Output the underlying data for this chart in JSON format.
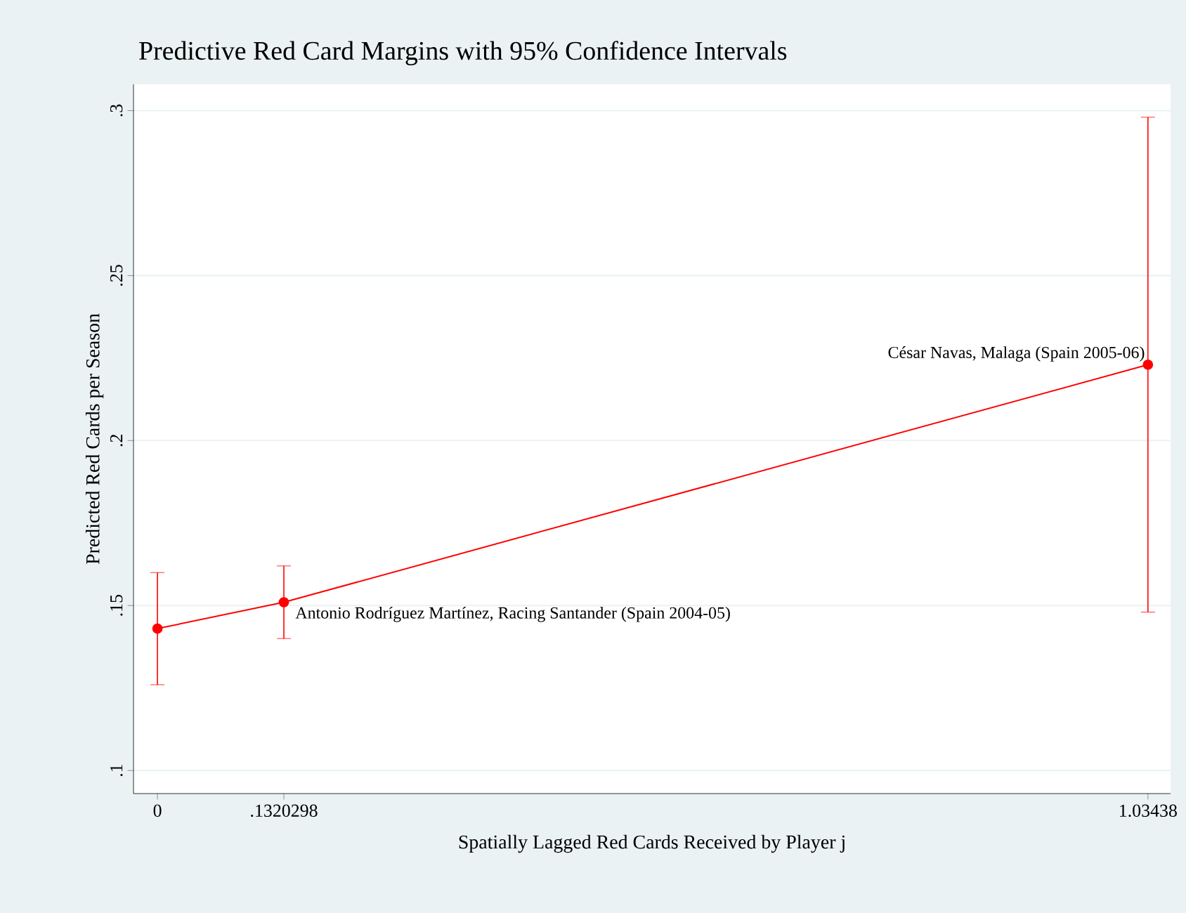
{
  "chart_data": {
    "type": "line",
    "title": "Predictive Red Card Margins with 95% Confidence Intervals",
    "xlabel": "Spatially Lagged Red Cards Received by Player j",
    "ylabel": "Predicted Red Cards per Season",
    "x": [
      0,
      0.1320298,
      1.03438
    ],
    "values": [
      0.143,
      0.151,
      0.223
    ],
    "errors": [
      [
        0.126,
        0.16
      ],
      [
        0.14,
        0.162
      ],
      [
        0.148,
        0.298
      ]
    ],
    "color": "#ff0000",
    "marker": "circle",
    "line_style": "solid",
    "grid": "y",
    "xlim": [
      -0.025,
      1.058
    ],
    "ylim": [
      0.093,
      0.308
    ],
    "xticks": [
      0,
      {
        "value": 0.1320298,
        "label": ".1320298"
      },
      1.03438
    ],
    "yticks": [
      {
        "value": 0.1,
        "label": ".1"
      },
      {
        "value": 0.15,
        "label": ".15"
      },
      {
        "value": 0.2,
        "label": ".2"
      },
      {
        "value": 0.25,
        "label": ".25"
      },
      {
        "value": 0.3,
        "label": ".3"
      }
    ],
    "annotations": [
      {
        "text": "César Navas, Malaga (Spain 2005-06)",
        "x": 1.03438,
        "y": 0.223
      },
      {
        "text": "Antonio Rodríguez Martínez, Racing Santander (Spain 2004-05)",
        "x": 0.1320298,
        "y": 0.151
      }
    ]
  }
}
